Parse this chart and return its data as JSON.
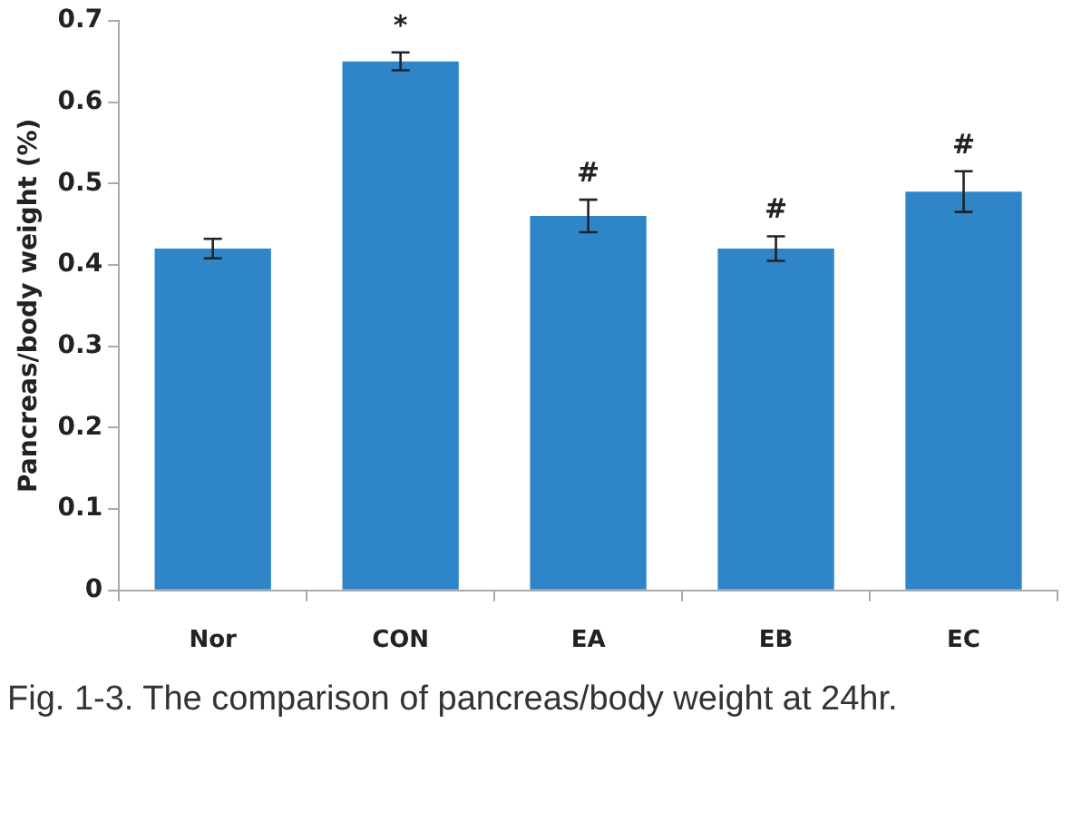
{
  "chart_data": {
    "type": "bar",
    "ylabel": "Pancreas/body weight (%)",
    "categories": [
      "Nor",
      "CON",
      "EA",
      "EB",
      "EC"
    ],
    "values": [
      0.42,
      0.65,
      0.46,
      0.42,
      0.49
    ],
    "errors": [
      0.012,
      0.011,
      0.02,
      0.015,
      0.025
    ],
    "color": "#2e86c8",
    "ylim": [
      0,
      0.7
    ],
    "yticks": [
      0,
      0.1,
      0.2,
      0.3,
      0.4,
      0.5,
      0.6,
      0.7
    ],
    "grid": false,
    "legend": false,
    "annotations": [
      {
        "text": "*",
        "x": "CON",
        "y": 0.661
      },
      {
        "text": "#",
        "x": "EA",
        "y": 0.48
      },
      {
        "text": "#",
        "x": "EB",
        "y": 0.435
      },
      {
        "text": "#",
        "x": "EC",
        "y": 0.515
      },
      "Fig. 1-3. The comparison of pancreas/body weight at 24hr."
    ]
  }
}
